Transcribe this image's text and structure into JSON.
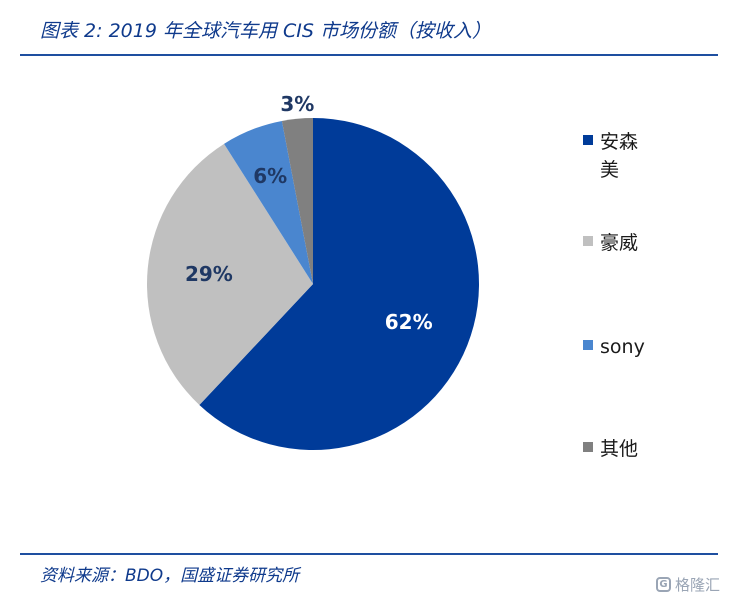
{
  "header": {
    "title": "图表 2:  2019 年全球汽车用 CIS 市场份额（按收入）"
  },
  "footer": {
    "source": "资料来源：BDO，国盛证券研究所"
  },
  "watermark": {
    "text": "格隆汇",
    "logo_letter": "G"
  },
  "chart_data": {
    "type": "pie",
    "title": "",
    "slices": [
      {
        "label": "安森美",
        "value": 62,
        "display": "62%",
        "color": "#003b99",
        "label_color": "#ffffff"
      },
      {
        "label": "豪威",
        "value": 29,
        "display": "29%",
        "color": "#c0c0c0",
        "label_color": "#1f3864"
      },
      {
        "label": "sony",
        "value": 6,
        "display": "6%",
        "color": "#4a86cf",
        "label_color": "#1f3864"
      },
      {
        "label": "其他",
        "value": 3,
        "display": "3%",
        "color": "#808080",
        "label_color": "#1f3864"
      }
    ],
    "legend_position": "right"
  }
}
